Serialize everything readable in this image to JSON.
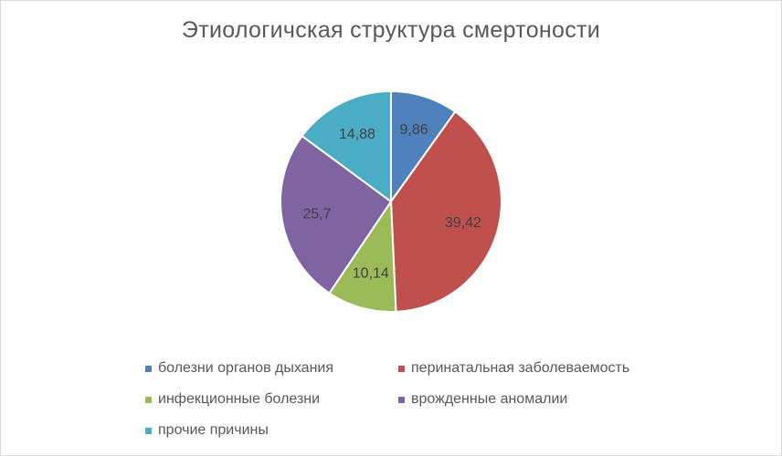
{
  "chart_data": {
    "type": "pie",
    "title": "Этиологичская структура смертоности",
    "legend_position": "bottom",
    "categories": [
      "болезни органов дыхания",
      "перинатальная заболеваемость",
      "инфекционные болезни",
      "врожденные аномалии",
      "прочие причины"
    ],
    "values": [
      9.86,
      39.42,
      10.14,
      25.7,
      14.88
    ],
    "data_labels": [
      "9,86",
      "39,42",
      "10,14",
      "25,7",
      "14,88"
    ],
    "colors": [
      "#4f81bd",
      "#c0504d",
      "#9bbb59",
      "#8064a2",
      "#4bacc6"
    ]
  }
}
